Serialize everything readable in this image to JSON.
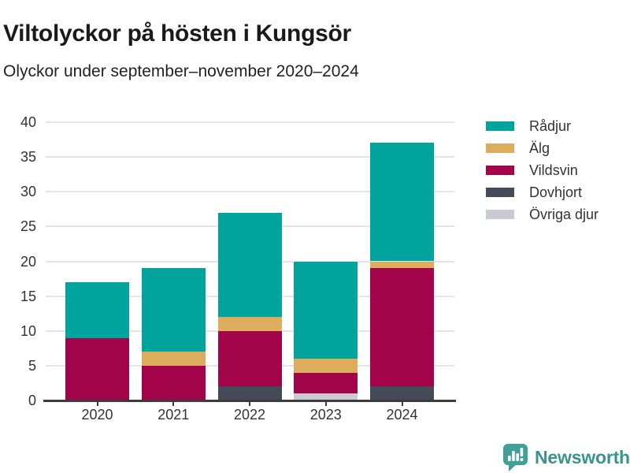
{
  "header": {
    "title": "Viltolyckor på hösten i Kungsör",
    "subtitle": "Olyckor under september–november 2020–2024"
  },
  "chart_data": {
    "type": "bar",
    "stacked": true,
    "title": "Viltolyckor på hösten i Kungsör",
    "subtitle": "Olyckor under september–november 2020–2024",
    "categories": [
      "2020",
      "2021",
      "2022",
      "2023",
      "2024"
    ],
    "series": [
      {
        "name": "Rådjur",
        "color": "#00a49c",
        "values": [
          8,
          12,
          15,
          14,
          17
        ]
      },
      {
        "name": "Älg",
        "color": "#dbad5c",
        "values": [
          0,
          2,
          2,
          2,
          1
        ]
      },
      {
        "name": "Vildsvin",
        "color": "#a30349",
        "values": [
          9,
          5,
          8,
          3,
          17
        ]
      },
      {
        "name": "Dovhjort",
        "color": "#454a59",
        "values": [
          0,
          0,
          2,
          0,
          2
        ]
      },
      {
        "name": "Övriga djur",
        "color": "#c8cbd3",
        "values": [
          0,
          0,
          0,
          1,
          0
        ]
      }
    ],
    "stack_order_bottom_to_top": [
      "Övriga djur",
      "Dovhjort",
      "Vildsvin",
      "Älg",
      "Rådjur"
    ],
    "totals": [
      17,
      19,
      27,
      20,
      37
    ],
    "xlabel": "",
    "ylabel": "",
    "ylim": [
      0,
      40
    ],
    "yticks": [
      0,
      5,
      10,
      15,
      20,
      25,
      30,
      35,
      40
    ],
    "grid": true,
    "legend_position": "right"
  },
  "colors": {
    "grid": "#e4e4e4",
    "axis": "#3c3c3c",
    "tick_text": "#333333",
    "brand_teal": "#3a938f",
    "brand_bubble": "#429e99"
  },
  "footer": {
    "brand": "Newsworthy",
    "logo": "newsworthy-bar-chart-speech-bubble-icon"
  }
}
